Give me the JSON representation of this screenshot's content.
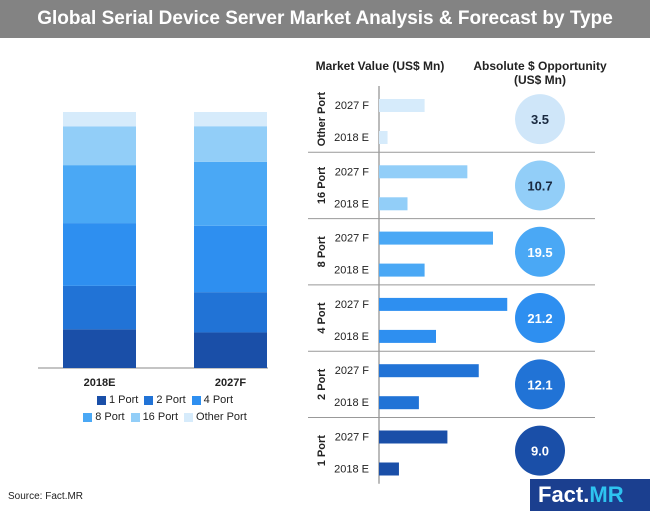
{
  "title": "Global Serial Device Server Market Analysis & Forecast by Type",
  "source": "Source: Fact.MR",
  "logo": {
    "part1": "Fact",
    "dot": ".",
    "part2": "MR"
  },
  "headers": {
    "market_value": "Market Value (US$ Mn)",
    "opportunity_line1": "Absolute $ Opportunity",
    "opportunity_line2": "(US$ Mn)"
  },
  "colors": {
    "1 Port": "#1a4fa8",
    "2 Port": "#2173d6",
    "4 Port": "#2e8ff0",
    "8 Port": "#4aa8f5",
    "16 Port": "#92cef8",
    "Other Port": "#d6ebfb"
  },
  "legend": {
    "row1": [
      "1 Port",
      "2 Port",
      "4 Port"
    ],
    "row2": [
      "8 Port",
      "16 Port",
      "Other Port"
    ]
  },
  "chart_data": [
    {
      "type": "bar",
      "stacked": true,
      "percent": true,
      "categories": [
        "2018E",
        "2027F"
      ],
      "series": [
        {
          "name": "1 Port",
          "values": [
            16,
            15
          ]
        },
        {
          "name": "2 Port",
          "values": [
            18,
            17
          ]
        },
        {
          "name": "4 Port",
          "values": [
            26,
            28
          ]
        },
        {
          "name": "8 Port",
          "values": [
            24,
            27
          ]
        },
        {
          "name": "16 Port",
          "values": [
            16,
            15
          ]
        },
        {
          "name": "Other Port",
          "values": [
            6,
            6
          ]
        }
      ]
    },
    {
      "type": "bar",
      "orientation": "horizontal",
      "xlabel": "Market Value (US$ Mn)",
      "groups": [
        {
          "name": "Other Port",
          "bars": [
            {
              "label": "2027 F",
              "value": 16
            },
            {
              "label": "2018 E",
              "value": 3
            }
          ],
          "opportunity": "3.5"
        },
        {
          "name": "16 Port",
          "bars": [
            {
              "label": "2027 F",
              "value": 31
            },
            {
              "label": "2018 E",
              "value": 10
            }
          ],
          "opportunity": "10.7"
        },
        {
          "name": "8 Port",
          "bars": [
            {
              "label": "2027 F",
              "value": 40
            },
            {
              "label": "2018 E",
              "value": 16
            }
          ],
          "opportunity": "19.5"
        },
        {
          "name": "4 Port",
          "bars": [
            {
              "label": "2027 F",
              "value": 45
            },
            {
              "label": "2018 E",
              "value": 20
            }
          ],
          "opportunity": "21.2"
        },
        {
          "name": "2 Port",
          "bars": [
            {
              "label": "2027 F",
              "value": 35
            },
            {
              "label": "2018 E",
              "value": 14
            }
          ],
          "opportunity": "12.1"
        },
        {
          "name": "1 Port",
          "bars": [
            {
              "label": "2027 F",
              "value": 24
            },
            {
              "label": "2018 E",
              "value": 7
            }
          ],
          "opportunity": "9.0"
        }
      ]
    }
  ]
}
